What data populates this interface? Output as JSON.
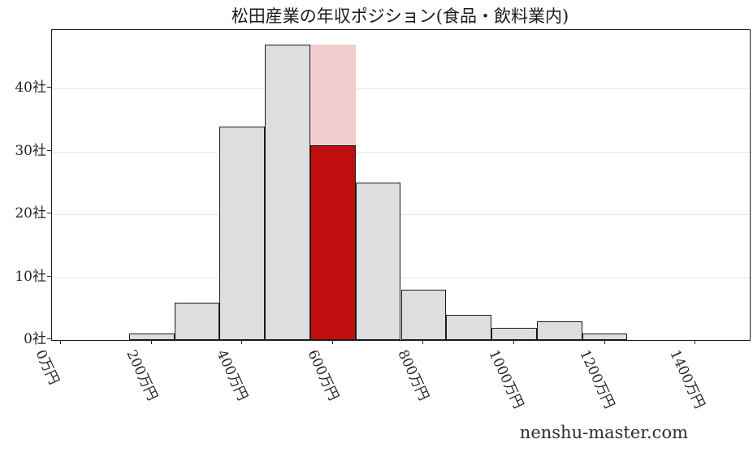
{
  "page": {
    "watermark": "nenshu-master.com",
    "background": "#ffffff"
  },
  "chart_data": {
    "type": "bar",
    "subtype": "histogram",
    "title": "松田産業の年収ポジション(食品・飲料業内)",
    "x_unit": "万円",
    "y_unit": "社",
    "bins": [
      {
        "start": 150,
        "end": 250,
        "count": 1
      },
      {
        "start": 250,
        "end": 350,
        "count": 6
      },
      {
        "start": 350,
        "end": 450,
        "count": 34
      },
      {
        "start": 450,
        "end": 550,
        "count": 47
      },
      {
        "start": 550,
        "end": 650,
        "count": 31,
        "band_top": 47,
        "highlighted": true
      },
      {
        "start": 650,
        "end": 750,
        "count": 25
      },
      {
        "start": 750,
        "end": 850,
        "count": 8
      },
      {
        "start": 850,
        "end": 950,
        "count": 4
      },
      {
        "start": 950,
        "end": 1050,
        "count": 2
      },
      {
        "start": 1050,
        "end": 1150,
        "count": 3
      },
      {
        "start": 1150,
        "end": 1250,
        "count": 1
      }
    ],
    "x_ticks": [
      {
        "value": 0,
        "label": "0万円"
      },
      {
        "value": 200,
        "label": "200万円"
      },
      {
        "value": 400,
        "label": "400万円"
      },
      {
        "value": 600,
        "label": "600万円"
      },
      {
        "value": 800,
        "label": "800万円"
      },
      {
        "value": 1000,
        "label": "1000万円"
      },
      {
        "value": 1200,
        "label": "1200万円"
      },
      {
        "value": 1400,
        "label": "1400万円"
      }
    ],
    "y_ticks": [
      {
        "value": 0,
        "label": "0社"
      },
      {
        "value": 10,
        "label": "10社"
      },
      {
        "value": 20,
        "label": "20社"
      },
      {
        "value": 30,
        "label": "30社"
      },
      {
        "value": 40,
        "label": "40社"
      }
    ],
    "xlim": [
      -20,
      1520
    ],
    "ylim": [
      0,
      49.35
    ],
    "grid": "horizontal",
    "legend": "none",
    "colors": {
      "bar_fill": "#dedede",
      "bar_edge": "#1a1a1a",
      "highlight_fill": "#c00d0d",
      "highlight_band": "#f2cccc",
      "grid_line": "#e6e6e6",
      "axis": "#1a1a1a",
      "text": "#262626"
    }
  }
}
